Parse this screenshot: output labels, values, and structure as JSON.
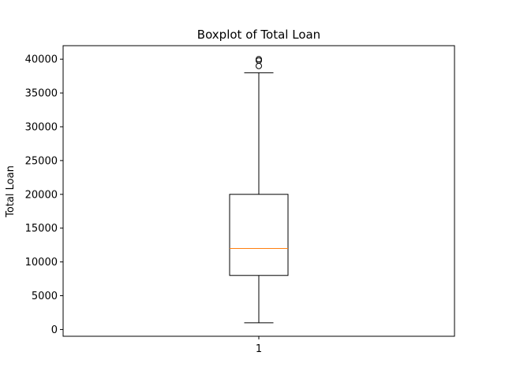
{
  "chart_data": {
    "type": "boxplot",
    "title": "Boxplot of Total Loan",
    "xlabel": "",
    "ylabel": "Total Loan",
    "categories": [
      "1"
    ],
    "ylim": [
      -1000,
      42000
    ],
    "yticks": [
      0,
      5000,
      10000,
      15000,
      20000,
      25000,
      30000,
      35000,
      40000
    ],
    "ytick_labels": [
      "0",
      "5000",
      "10000",
      "15000",
      "20000",
      "25000",
      "30000",
      "35000",
      "40000"
    ],
    "grid": false,
    "boxes": [
      {
        "category": "1",
        "whisker_low": 1000,
        "q1": 8000,
        "median": 12000,
        "q3": 20000,
        "whisker_high": 38000,
        "outliers": [
          39000,
          39800,
          40000
        ]
      }
    ],
    "colors": {
      "box": "#000000",
      "median": "#ff7f0e",
      "whisker": "#000000",
      "outlier": "#000000"
    }
  }
}
